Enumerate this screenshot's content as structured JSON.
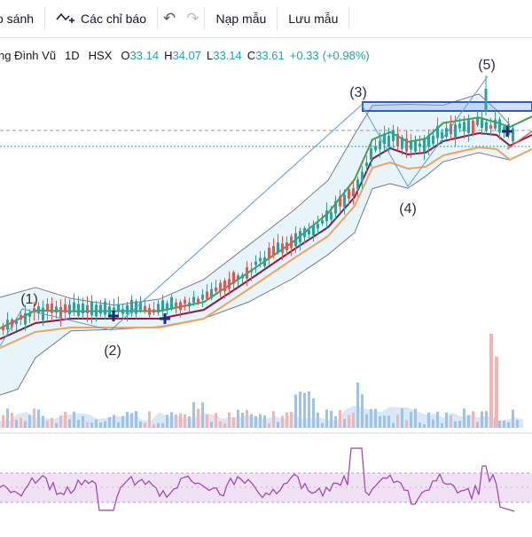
{
  "toolbar": {
    "compare_label": "o sánh",
    "indicators_label": "Các chỉ báo",
    "templates_label": "Nạp mẫu",
    "save_label": "Lưu mẫu"
  },
  "legend": {
    "symbol_name": "ng Đình Vũ",
    "interval": "1D",
    "exchange": "HSX",
    "open_label": "O",
    "open_value": "33.14",
    "high_label": "H",
    "high_value": "34.07",
    "low_label": "L",
    "low_value": "33.14",
    "close_label": "C",
    "close_value": "33.61",
    "change": "+0.33",
    "change_pct": "(+0.98%)"
  },
  "wave_labels": [
    "(1)",
    "(2)",
    "(3)",
    "(4)",
    "(5)"
  ],
  "colors": {
    "up": "#26a69a",
    "down": "#ef5350",
    "ma_fast": "#43a047",
    "ma_mid": "#8e1a3c",
    "ma_slow": "#f0a35e",
    "bollinger": "#787b86",
    "bollinger_fill": "#d7ecf7",
    "rsi": "#9c3fb5",
    "rsi_band": "#f1e1f5",
    "elliott": "#5b9bd5",
    "resistance": "#2f5cc8",
    "volume_up": "#9fc3e8",
    "volume_down": "#f5b3b3"
  }
}
